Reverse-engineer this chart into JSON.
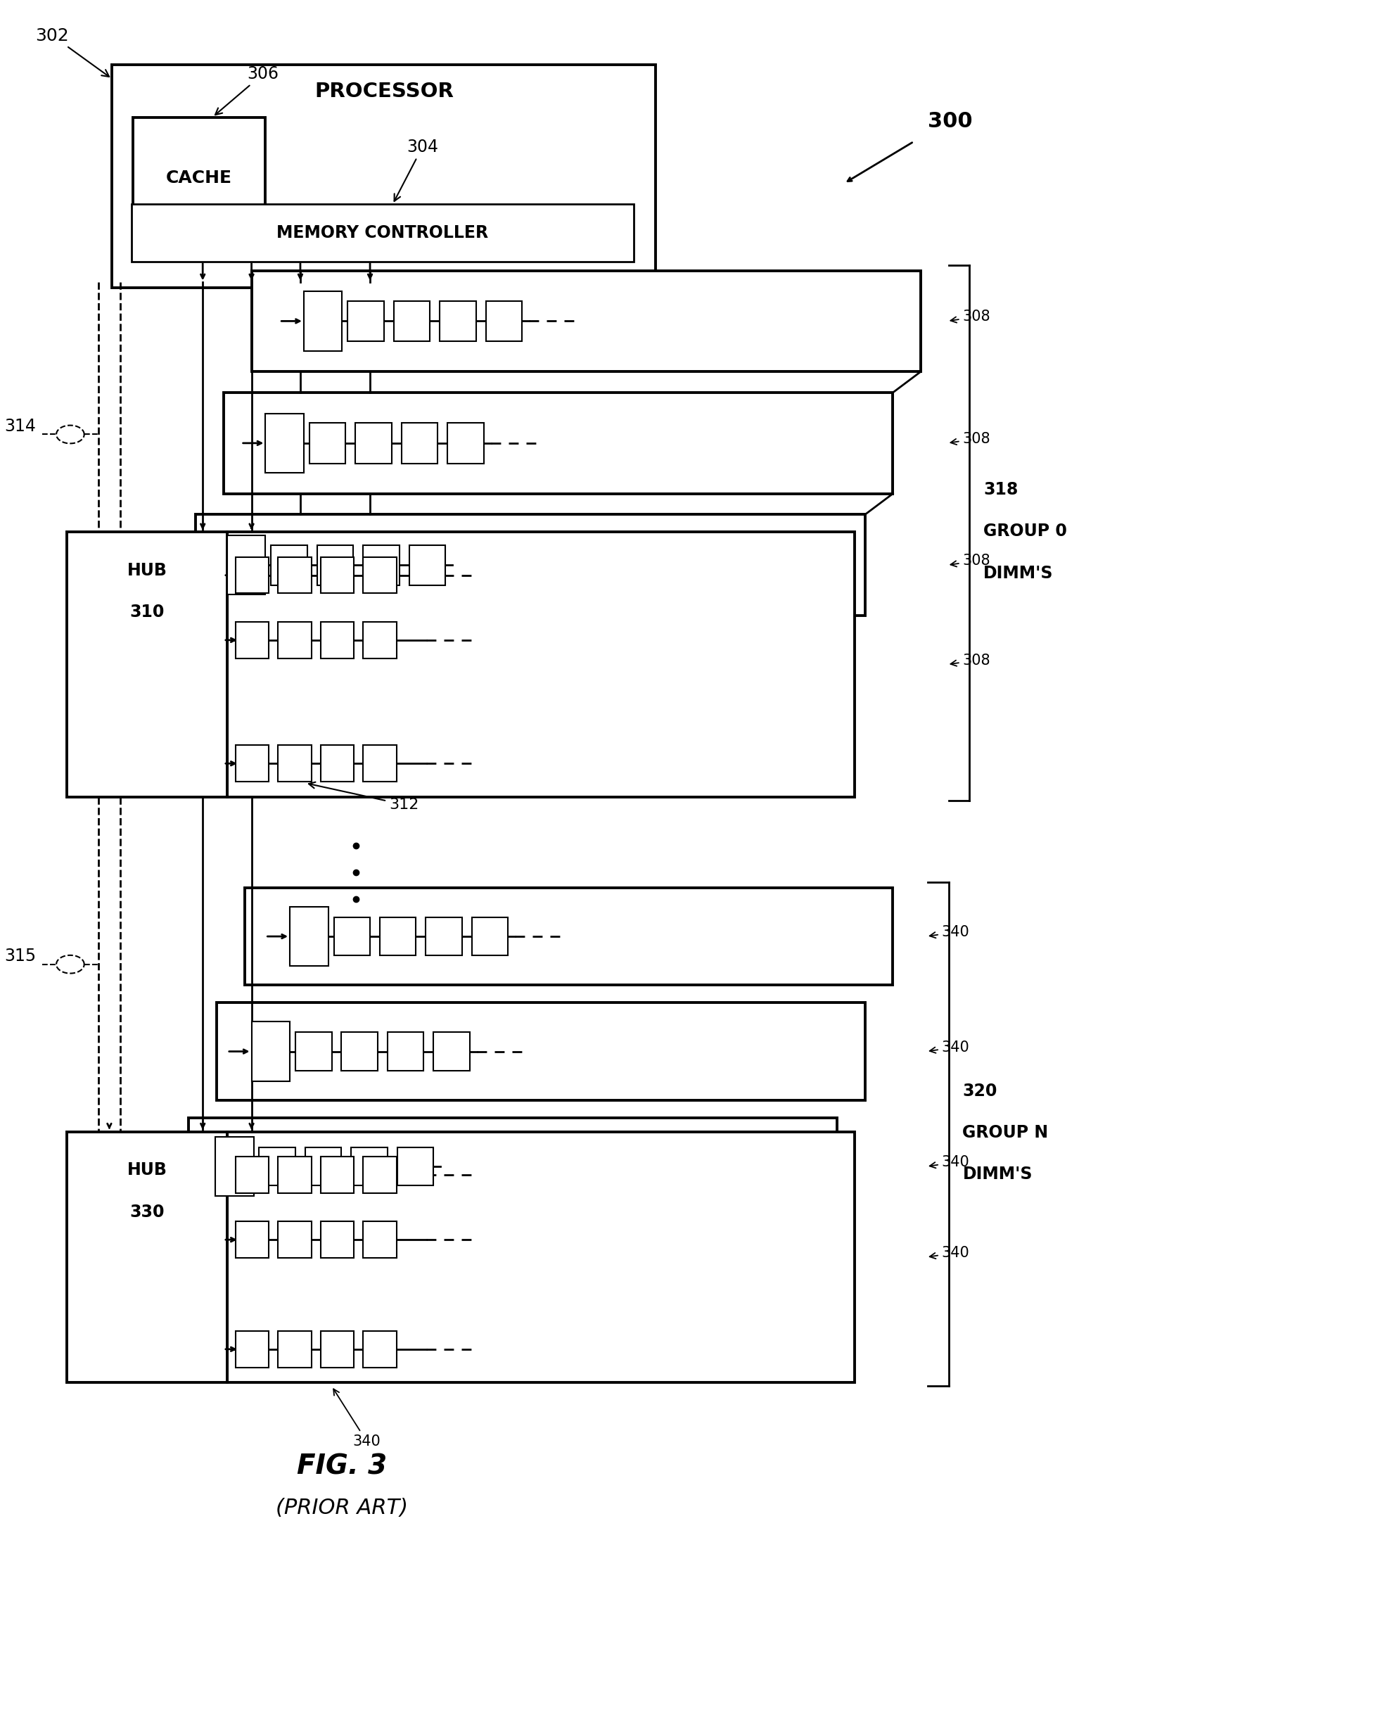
{
  "bg_color": "#ffffff",
  "line_color": "#000000",
  "title": "FIG. 3",
  "subtitle": "(PRIOR ART)",
  "fig_label": "300",
  "processor_label": "PROCESSOR",
  "processor_ref": "302",
  "cache_label": "CACHE",
  "cache_ref": "306",
  "mem_ctrl_label": "MEMORY CONTROLLER",
  "mem_ctrl_ref": "304",
  "hub0_label": "HUB",
  "hub0_num": "310",
  "hub1_label": "HUB",
  "hub1_num": "330",
  "channel0_ref": "314",
  "channel1_ref": "315",
  "group0_num": "318",
  "group0_name": "GROUP 0",
  "group0_dimms": "DIMM'S",
  "group1_num": "320",
  "group1_name": "GROUP N",
  "group1_dimms": "DIMM'S",
  "dimm_ref_group0": "308",
  "dimm_ref_group1": "340",
  "dimm_ref_312": "312"
}
